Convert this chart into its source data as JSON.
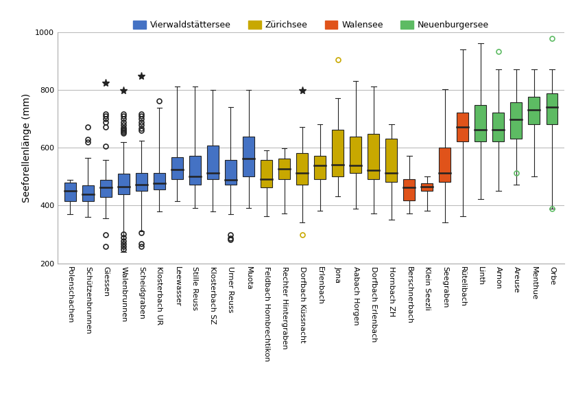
{
  "title": "",
  "ylabel": "Seeforellenlänge (mm)",
  "ylim": [
    200,
    1000
  ],
  "yticks": [
    200,
    400,
    600,
    800,
    1000
  ],
  "bgcolor": "#ffffff",
  "legend": [
    {
      "label": "Vierwaldstättersee",
      "color": "#4472C4"
    },
    {
      "label": "Zürichsee",
      "color": "#C8A800"
    },
    {
      "label": "Walensee",
      "color": "#E0531A"
    },
    {
      "label": "Neuenburgersee",
      "color": "#5DBB63"
    }
  ],
  "boxes": [
    {
      "label": "Polenschachen",
      "color": "#4472C4",
      "whislo": 370,
      "q1": 415,
      "med": 450,
      "q3": 480,
      "whishi": 490,
      "fliers": [],
      "fliers_star": []
    },
    {
      "label": "Schützenbrunnen",
      "color": "#4472C4",
      "whislo": 360,
      "q1": 415,
      "med": 440,
      "q3": 470,
      "whishi": 565,
      "fliers": [
        620,
        630,
        672
      ],
      "fliers_star": []
    },
    {
      "label": "Giessen",
      "color": "#4472C4",
      "whislo": 355,
      "q1": 430,
      "med": 462,
      "q3": 490,
      "whishi": 558,
      "fliers": [
        605,
        672,
        690,
        700,
        710,
        718,
        258,
        298
      ],
      "fliers_star": [
        825
      ]
    },
    {
      "label": "Walenbrunnen",
      "color": "#4472C4",
      "whislo": 240,
      "q1": 438,
      "med": 465,
      "q3": 510,
      "whishi": 620,
      "fliers": [
        650,
        655,
        660,
        665,
        670,
        680,
        690,
        700,
        710,
        718,
        248,
        258,
        268,
        278,
        290,
        300
      ],
      "fliers_star": [
        798
      ]
    },
    {
      "label": "Scheidgraben",
      "color": "#4472C4",
      "whislo": 310,
      "q1": 450,
      "med": 472,
      "q3": 512,
      "whishi": 625,
      "fliers": [
        660,
        668,
        680,
        690,
        700,
        710,
        718,
        258,
        268,
        305
      ],
      "fliers_star": [
        848
      ]
    },
    {
      "label": "Klosterbach UR",
      "color": "#4472C4",
      "whislo": 380,
      "q1": 455,
      "med": 478,
      "q3": 512,
      "whishi": 738,
      "fliers": [
        762
      ],
      "fliers_star": []
    },
    {
      "label": "Leewasser",
      "color": "#4472C4",
      "whislo": 415,
      "q1": 492,
      "med": 525,
      "q3": 568,
      "whishi": 812,
      "fliers": [],
      "fliers_star": []
    },
    {
      "label": "Stille Reuss",
      "color": "#4472C4",
      "whislo": 392,
      "q1": 472,
      "med": 502,
      "q3": 572,
      "whishi": 812,
      "fliers": [],
      "fliers_star": []
    },
    {
      "label": "Klosterbach SZ",
      "color": "#4472C4",
      "whislo": 380,
      "q1": 492,
      "med": 512,
      "q3": 608,
      "whishi": 800,
      "fliers": [],
      "fliers_star": []
    },
    {
      "label": "Urner Reuss",
      "color": "#4472C4",
      "whislo": 370,
      "q1": 472,
      "med": 488,
      "q3": 558,
      "whishi": 742,
      "fliers": [
        282,
        288,
        298
      ],
      "fliers_star": []
    },
    {
      "label": "Muota",
      "color": "#4472C4",
      "whislo": 392,
      "q1": 502,
      "med": 562,
      "q3": 638,
      "whishi": 800,
      "fliers": [],
      "fliers_star": []
    },
    {
      "label": "Feldbach Hombrechtikon",
      "color": "#C8A800",
      "whislo": 362,
      "q1": 462,
      "med": 492,
      "q3": 558,
      "whishi": 592,
      "fliers": [],
      "fliers_star": []
    },
    {
      "label": "Rechter Hintergraben",
      "color": "#C8A800",
      "whislo": 372,
      "q1": 492,
      "med": 528,
      "q3": 562,
      "whishi": 598,
      "fliers": [],
      "fliers_star": []
    },
    {
      "label": "Dorfbach Küssnacht",
      "color": "#C8A800",
      "whislo": 342,
      "q1": 472,
      "med": 512,
      "q3": 582,
      "whishi": 672,
      "fliers": [
        298
      ],
      "fliers_star": [
        798
      ]
    },
    {
      "label": "Erlenbach",
      "color": "#C8A800",
      "whislo": 382,
      "q1": 492,
      "med": 538,
      "q3": 572,
      "whishi": 682,
      "fliers": [],
      "fliers_star": []
    },
    {
      "label": "Jona",
      "color": "#C8A800",
      "whislo": 432,
      "q1": 502,
      "med": 542,
      "q3": 662,
      "whishi": 772,
      "fliers": [
        905
      ],
      "fliers_star": []
    },
    {
      "label": "Aabach Horgen",
      "color": "#C8A800",
      "whislo": 388,
      "q1": 512,
      "med": 538,
      "q3": 638,
      "whishi": 832,
      "fliers": [],
      "fliers_star": []
    },
    {
      "label": "Dorfbach Erlenbach",
      "color": "#C8A800",
      "whislo": 372,
      "q1": 492,
      "med": 522,
      "q3": 648,
      "whishi": 812,
      "fliers": [],
      "fliers_star": []
    },
    {
      "label": "Hornbach ZH",
      "color": "#C8A800",
      "whislo": 352,
      "q1": 482,
      "med": 512,
      "q3": 632,
      "whishi": 682,
      "fliers": [],
      "fliers_star": []
    },
    {
      "label": "Berschnerbach",
      "color": "#E0531A",
      "whislo": 372,
      "q1": 418,
      "med": 462,
      "q3": 492,
      "whishi": 572,
      "fliers": [],
      "fliers_star": []
    },
    {
      "label": "Klein Seezli",
      "color": "#E0531A",
      "whislo": 382,
      "q1": 452,
      "med": 465,
      "q3": 478,
      "whishi": 502,
      "fliers": [],
      "fliers_star": []
    },
    {
      "label": "Seegraben",
      "color": "#E0531A",
      "whislo": 342,
      "q1": 482,
      "med": 512,
      "q3": 602,
      "whishi": 802,
      "fliers": [],
      "fliers_star": []
    },
    {
      "label": "Rütelibach",
      "color": "#E0531A",
      "whislo": 362,
      "q1": 622,
      "med": 672,
      "q3": 722,
      "whishi": 942,
      "fliers": [],
      "fliers_star": []
    },
    {
      "label": "Linth",
      "color": "#5DBB63",
      "whislo": 422,
      "q1": 622,
      "med": 662,
      "q3": 748,
      "whishi": 962,
      "fliers": [],
      "fliers_star": []
    },
    {
      "label": "Arnon",
      "color": "#5DBB63",
      "whislo": 452,
      "q1": 622,
      "med": 662,
      "q3": 722,
      "whishi": 872,
      "fliers": [
        935
      ],
      "fliers_star": []
    },
    {
      "label": "Areuse",
      "color": "#5DBB63",
      "whislo": 472,
      "q1": 632,
      "med": 698,
      "q3": 758,
      "whishi": 872,
      "fliers": [
        512
      ],
      "fliers_star": []
    },
    {
      "label": "Menthue",
      "color": "#5DBB63",
      "whislo": 502,
      "q1": 682,
      "med": 732,
      "q3": 778,
      "whishi": 872,
      "fliers": [],
      "fliers_star": []
    },
    {
      "label": "Orbe",
      "color": "#5DBB63",
      "whislo": 388,
      "q1": 682,
      "med": 742,
      "q3": 788,
      "whishi": 872,
      "fliers": [
        388,
        980
      ],
      "fliers_star": []
    }
  ]
}
